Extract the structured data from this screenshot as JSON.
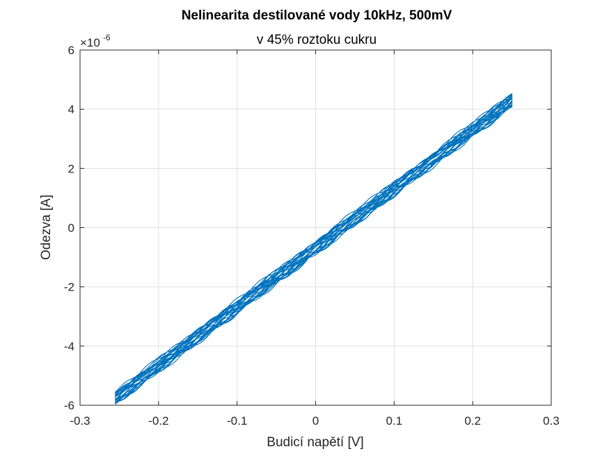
{
  "chart_data": {
    "type": "line",
    "title": "Nelinearita destilované vody 10kHz, 500mV",
    "subtitle": "v 45% roztoku cukru",
    "xlabel": "Budicí napětí [V]",
    "ylabel": "Odezva [A]",
    "xlim": [
      -0.3,
      0.3
    ],
    "ylim": [
      -6,
      6
    ],
    "y_exponent_label": "×10",
    "y_exponent_power": "-6",
    "x_ticks": [
      -0.3,
      -0.2,
      -0.1,
      0,
      0.1,
      0.2,
      0.3
    ],
    "x_tick_labels": [
      "-0.3",
      "-0.2",
      "-0.1",
      "0",
      "0.1",
      "0.2",
      "0.3"
    ],
    "y_ticks": [
      -6,
      -4,
      -2,
      0,
      2,
      4,
      6
    ],
    "y_tick_labels": [
      "-6",
      "-4",
      "-2",
      "0",
      "2",
      "4",
      "6"
    ],
    "grid": true,
    "legend": "none",
    "series": [
      {
        "color": "#0072BD",
        "x_range": [
          -0.255,
          0.25
        ],
        "y_at_x_min": -5.75,
        "y_at_x_max": 4.3,
        "cycles": 12,
        "band_width": 0.25
      }
    ]
  }
}
